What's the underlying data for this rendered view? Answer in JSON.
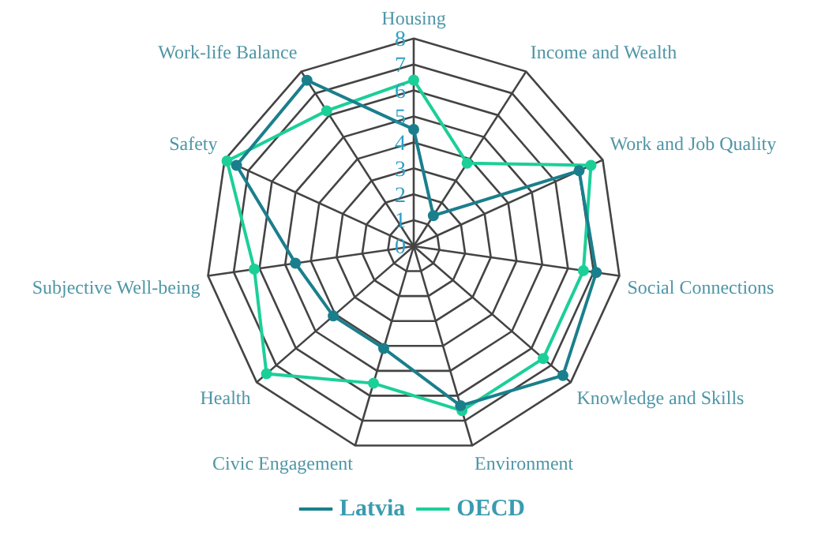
{
  "chart_data": {
    "type": "radar",
    "categories": [
      "Housing",
      "Income and Wealth",
      "Work and Job Quality",
      "Social Connections",
      "Knowledge and Skills",
      "Environment",
      "Civic Engagement",
      "Health",
      "Subjective Well-being",
      "Safety",
      "Work-life Balance"
    ],
    "series": [
      {
        "name": "Latvia",
        "color": "#1a7f8c",
        "values": [
          4.5,
          1.4,
          7.0,
          7.1,
          7.6,
          6.4,
          4.1,
          4.1,
          4.6,
          7.5,
          7.6
        ]
      },
      {
        "name": "OECD",
        "color": "#1ccf98",
        "values": [
          6.4,
          3.8,
          7.5,
          6.6,
          6.6,
          6.6,
          5.5,
          7.5,
          6.2,
          7.9,
          6.2
        ]
      }
    ],
    "ylim": [
      0,
      8
    ],
    "yticks": [
      0,
      1,
      2,
      3,
      4,
      5,
      6,
      7,
      8
    ],
    "grid": true,
    "legend": "bottom",
    "marker": "circle"
  }
}
